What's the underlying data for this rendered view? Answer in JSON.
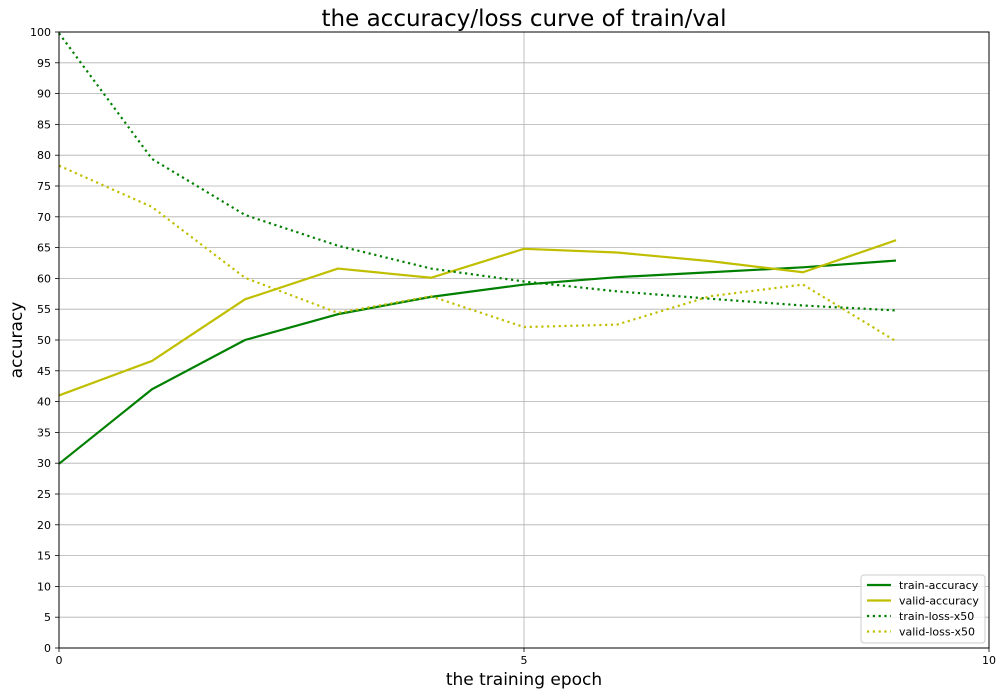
{
  "chart_data": {
    "type": "line",
    "title": "the accuracy/loss curve of train/val",
    "xlabel": "the training epoch",
    "ylabel": "accuracy",
    "xlim": [
      0,
      10
    ],
    "ylim": [
      0,
      100
    ],
    "x_ticks": [
      0,
      5,
      10
    ],
    "y_ticks": [
      0,
      5,
      10,
      15,
      20,
      25,
      30,
      35,
      40,
      45,
      50,
      55,
      60,
      65,
      70,
      75,
      80,
      85,
      90,
      95,
      100
    ],
    "grid": true,
    "legend_position": "lower-right",
    "x": [
      0,
      1,
      2,
      3,
      4,
      5,
      6,
      7,
      8,
      9
    ],
    "series": [
      {
        "name": "train-accuracy",
        "color": "#008000",
        "style": "solid",
        "values": [
          29.9,
          42.0,
          50.0,
          54.2,
          57.0,
          59.0,
          60.2,
          61.0,
          61.8,
          62.9
        ]
      },
      {
        "name": "valid-accuracy",
        "color": "#bfbf00",
        "style": "solid",
        "values": [
          41.0,
          46.6,
          56.6,
          61.6,
          60.1,
          64.8,
          64.2,
          62.8,
          61.0,
          66.2
        ]
      },
      {
        "name": "train-loss-x50",
        "color": "#008000",
        "style": "dotted",
        "values": [
          99.8,
          79.4,
          70.3,
          65.3,
          61.6,
          59.5,
          57.9,
          56.7,
          55.6,
          54.8
        ]
      },
      {
        "name": "valid-loss-x50",
        "color": "#bfbf00",
        "style": "dotted",
        "values": [
          78.3,
          71.6,
          60.1,
          54.4,
          57.1,
          52.1,
          52.5,
          57.1,
          59.0,
          49.8
        ]
      }
    ]
  }
}
